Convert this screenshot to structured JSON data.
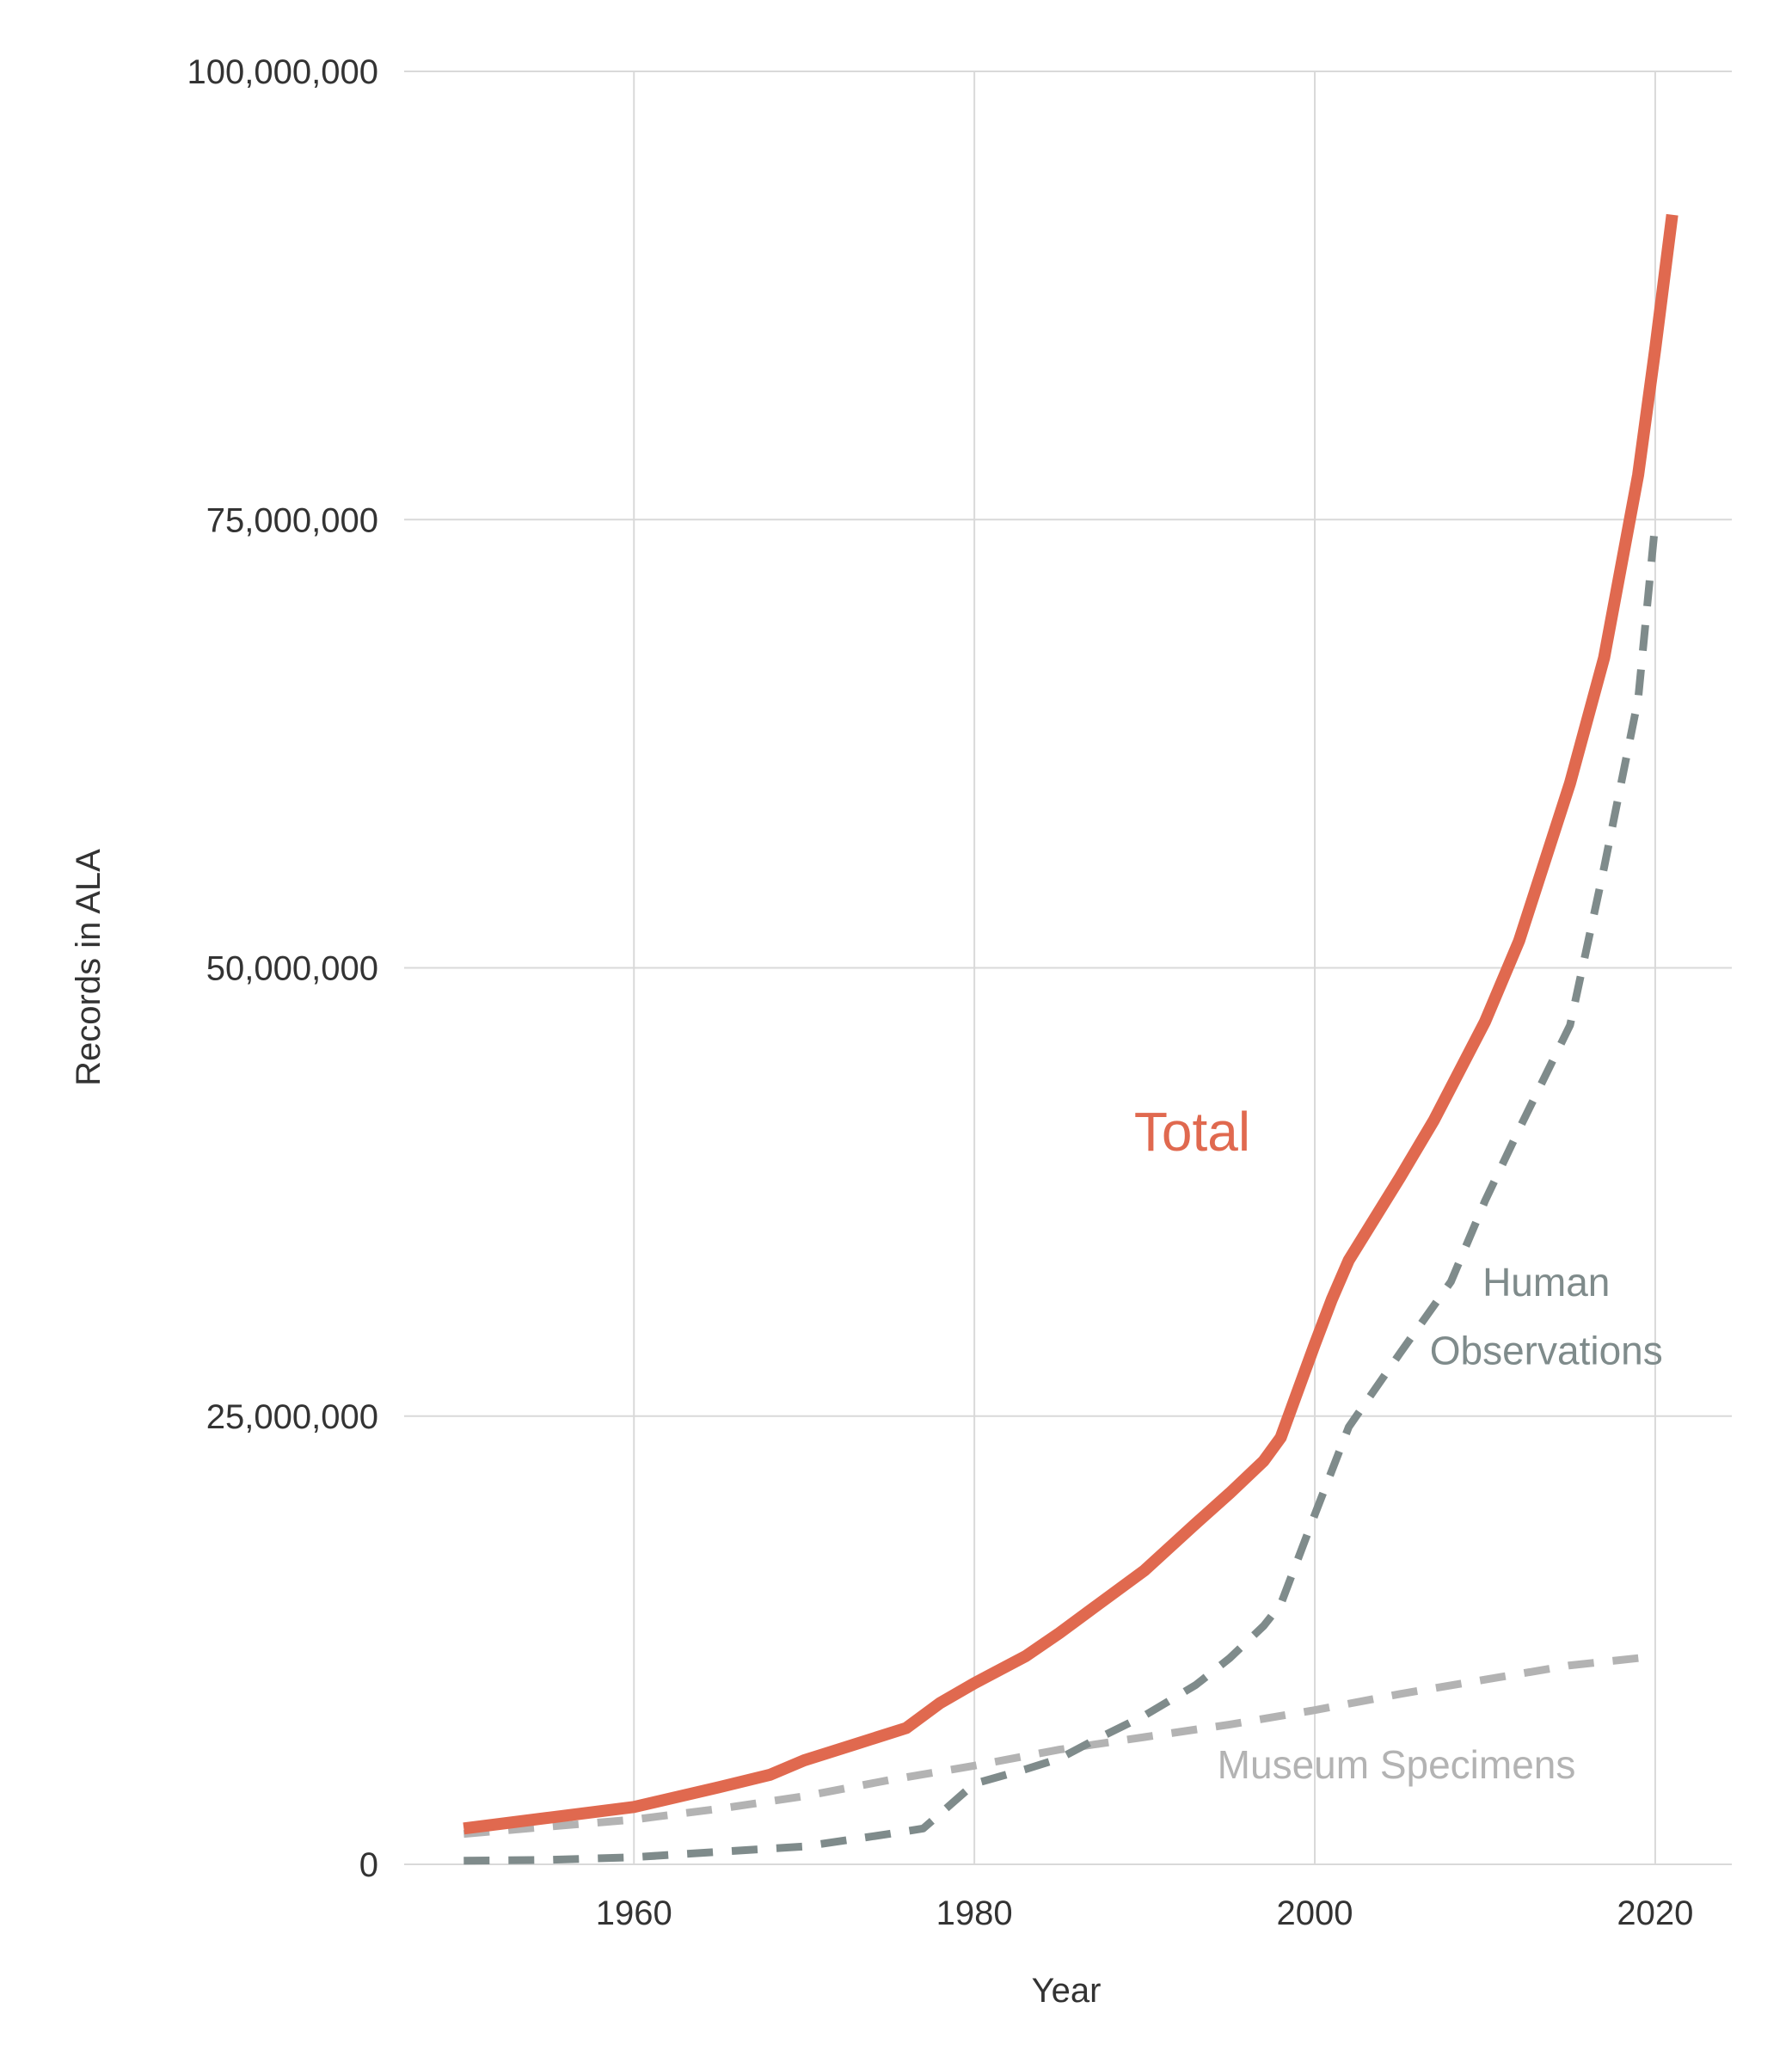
{
  "chart_data": {
    "type": "line",
    "title": "",
    "xlabel": "Year",
    "ylabel": "Records in ALA",
    "xlim": [
      1946.5,
      2024.5
    ],
    "ylim": [
      0,
      100000000
    ],
    "x_ticks": [
      1960,
      1980,
      2000,
      2020
    ],
    "x_tick_labels": [
      "1960",
      "1980",
      "2000",
      "2020"
    ],
    "y_ticks": [
      0,
      25000000,
      50000000,
      75000000,
      100000000
    ],
    "y_tick_labels": [
      "0",
      "25,000,000",
      "50,000,000",
      "75,000,000",
      "100,000,000"
    ],
    "grid": true,
    "legend": "none (direct labels)",
    "colors": {
      "total": "#e0694f",
      "human_observations": "#7f8b8b",
      "museum_specimens": "#b3b3b3",
      "grid": "#d9d9d9"
    },
    "series": [
      {
        "name": "Total",
        "style": "solid",
        "x": [
          1950,
          1955,
          1960,
          1965,
          1968,
          1970,
          1973,
          1976,
          1978,
          1980,
          1983,
          1985,
          1987,
          1990,
          1993,
          1995,
          1997,
          1998,
          2000,
          2001,
          2002,
          2005,
          2007,
          2010,
          2012,
          2015,
          2017,
          2019,
          2020,
          2021
        ],
        "values": [
          2000000,
          2600000,
          3200000,
          4300000,
          5000000,
          5800000,
          6700000,
          7600000,
          9000000,
          10100000,
          11600000,
          12900000,
          14300000,
          16400000,
          19000000,
          20700000,
          22500000,
          23800000,
          29000000,
          31500000,
          33700000,
          38300000,
          41500000,
          47000000,
          51500000,
          60300000,
          67300000,
          77500000,
          84500000,
          92000000
        ]
      },
      {
        "name": "Human Observations",
        "style": "dashed",
        "x": [
          1950,
          1955,
          1960,
          1965,
          1970,
          1975,
          1977,
          1980,
          1983,
          1985,
          1987,
          1990,
          1993,
          1995,
          1997,
          1998,
          2000,
          2002,
          2005,
          2008,
          2010,
          2012,
          2015,
          2017,
          2019,
          2020
        ],
        "values": [
          200000,
          250000,
          400000,
          700000,
          1000000,
          1700000,
          2000000,
          4500000,
          5300000,
          5900000,
          6900000,
          8300000,
          10000000,
          11500000,
          13300000,
          14500000,
          19500000,
          24400000,
          28500000,
          32500000,
          37000000,
          41000000,
          46800000,
          55600000,
          65000000,
          74800000
        ]
      },
      {
        "name": "Museum Specimens",
        "style": "dashed",
        "x": [
          1950,
          1955,
          1960,
          1965,
          1970,
          1975,
          1980,
          1985,
          1990,
          1995,
          2000,
          2005,
          2010,
          2015,
          2020
        ],
        "values": [
          1700000,
          2100000,
          2500000,
          3100000,
          3800000,
          4700000,
          5500000,
          6400000,
          7100000,
          7800000,
          8600000,
          9500000,
          10300000,
          11100000,
          11600000
        ]
      }
    ],
    "annotations": [
      {
        "text": "Total",
        "x": 1992.8,
        "y": 39800000,
        "color": "#e0694f",
        "size": "large"
      },
      {
        "text": "Human",
        "x": 2013.6,
        "y": 31700000,
        "color": "#7f8b8b",
        "size": "medium"
      },
      {
        "text": "Observations",
        "x": 2013.6,
        "y": 27900000,
        "color": "#7f8b8b",
        "size": "medium"
      },
      {
        "text": "Museum Specimens",
        "x": 2004.8,
        "y": 4800000,
        "color": "#b3b3b3",
        "size": "medium"
      }
    ]
  }
}
